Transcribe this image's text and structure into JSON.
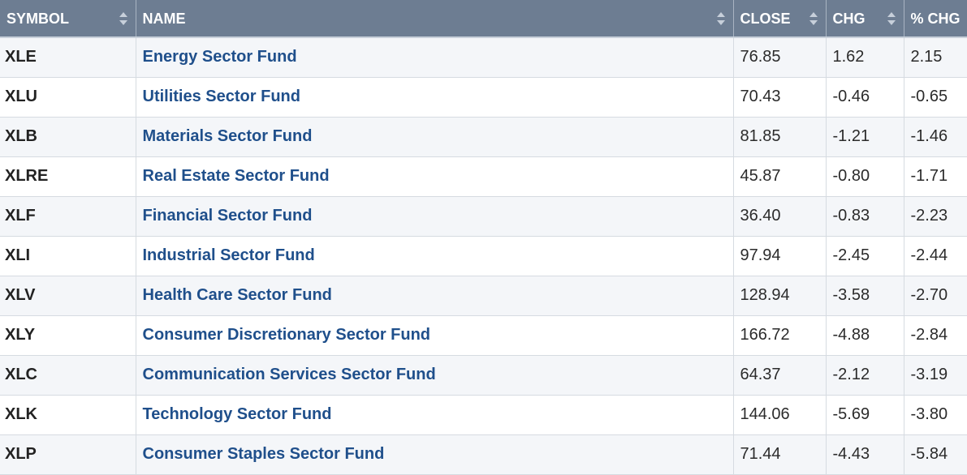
{
  "table": {
    "headers": {
      "symbol": "SYMBOL",
      "name": "NAME",
      "close": "CLOSE",
      "chg": "CHG",
      "pct_chg": "% CHG"
    },
    "rows": [
      {
        "symbol": "XLE",
        "name": "Energy Sector Fund",
        "close": "76.85",
        "chg": "1.62",
        "pct_chg": "2.15"
      },
      {
        "symbol": "XLU",
        "name": "Utilities Sector Fund",
        "close": "70.43",
        "chg": "-0.46",
        "pct_chg": "-0.65"
      },
      {
        "symbol": "XLB",
        "name": "Materials Sector Fund",
        "close": "81.85",
        "chg": "-1.21",
        "pct_chg": "-1.46"
      },
      {
        "symbol": "XLRE",
        "name": "Real Estate Sector Fund",
        "close": "45.87",
        "chg": "-0.80",
        "pct_chg": "-1.71"
      },
      {
        "symbol": "XLF",
        "name": "Financial Sector Fund",
        "close": "36.40",
        "chg": "-0.83",
        "pct_chg": "-2.23"
      },
      {
        "symbol": "XLI",
        "name": "Industrial Sector Fund",
        "close": "97.94",
        "chg": "-2.45",
        "pct_chg": "-2.44"
      },
      {
        "symbol": "XLV",
        "name": "Health Care Sector Fund",
        "close": "128.94",
        "chg": "-3.58",
        "pct_chg": "-2.70"
      },
      {
        "symbol": "XLY",
        "name": "Consumer Discretionary Sector Fund",
        "close": "166.72",
        "chg": "-4.88",
        "pct_chg": "-2.84"
      },
      {
        "symbol": "XLC",
        "name": "Communication Services Sector Fund",
        "close": "64.37",
        "chg": "-2.12",
        "pct_chg": "-3.19"
      },
      {
        "symbol": "XLK",
        "name": "Technology Sector Fund",
        "close": "144.06",
        "chg": "-5.69",
        "pct_chg": "-3.80"
      },
      {
        "symbol": "XLP",
        "name": "Consumer Staples Sector Fund",
        "close": "71.44",
        "chg": "-4.43",
        "pct_chg": "-5.84"
      }
    ]
  },
  "colors": {
    "header_bg": "#6d7d92",
    "link": "#1f4f8b",
    "row_alt": "#f4f6f9"
  },
  "icons": {
    "sort": "sort-arrows-icon"
  }
}
